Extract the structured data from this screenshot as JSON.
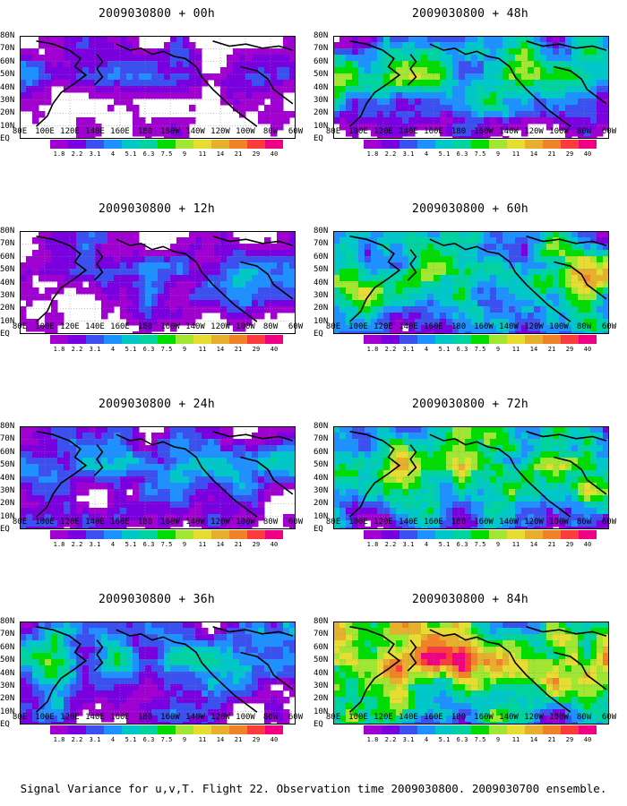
{
  "chart_data": [
    {
      "type": "heatmap",
      "title": "2009030800 + 00h",
      "intensity": 0.15
    },
    {
      "type": "heatmap",
      "title": "2009030800 + 48h",
      "intensity": 0.55
    },
    {
      "type": "heatmap",
      "title": "2009030800 + 12h",
      "intensity": 0.25
    },
    {
      "type": "heatmap",
      "title": "2009030800 + 60h",
      "intensity": 0.65
    },
    {
      "type": "heatmap",
      "title": "2009030800 + 24h",
      "intensity": 0.35
    },
    {
      "type": "heatmap",
      "title": "2009030800 + 72h",
      "intensity": 0.75
    },
    {
      "type": "heatmap",
      "title": "2009030800 + 36h",
      "intensity": 0.45
    },
    {
      "type": "heatmap",
      "title": "2009030800 + 84h",
      "intensity": 0.85
    }
  ],
  "lat_labels": [
    "80N",
    "70N",
    "60N",
    "50N",
    "40N",
    "30N",
    "20N",
    "10N",
    "EQ"
  ],
  "lon_labels": [
    "80E",
    "100E",
    "120E",
    "140E",
    "160E",
    "180",
    "160W",
    "140W",
    "120W",
    "100W",
    "80W",
    "60W"
  ],
  "colorbar": {
    "labels": [
      "1.8",
      "2.2",
      "3.1",
      "4",
      "5.1",
      "6.3",
      "7.5",
      "9",
      "11",
      "14",
      "21",
      "29",
      "40"
    ],
    "colors": [
      "#a000d0",
      "#7b00e0",
      "#3c50f0",
      "#1e90ff",
      "#00c8c8",
      "#00d2a0",
      "#00dc00",
      "#a0e632",
      "#e6dc32",
      "#e6af2d",
      "#f08228",
      "#fa3c3c",
      "#f00082"
    ]
  },
  "footer": "Signal Variance for u,v,T. Flight 22. Observation time 2009030800. 2009030700 ensemble."
}
